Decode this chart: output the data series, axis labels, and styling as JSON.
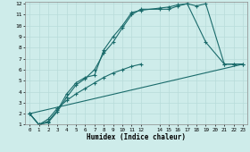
{
  "xlabel": "Humidex (Indice chaleur)",
  "bg_color": "#ceecea",
  "line_color": "#1a6b6b",
  "grid_color": "#b8dbd9",
  "xlim": [
    -0.5,
    23.5
  ],
  "ylim": [
    1,
    12.2
  ],
  "xtick_vals": [
    0,
    1,
    2,
    3,
    4,
    5,
    6,
    7,
    8,
    9,
    10,
    11,
    12,
    14,
    15,
    16,
    17,
    18,
    19,
    20,
    21,
    22,
    23
  ],
  "xtick_labels": [
    "0",
    "1",
    "2",
    "3",
    "4",
    "5",
    "6",
    "7",
    "8",
    "9",
    "10",
    "11",
    "12",
    "14",
    "15",
    "16",
    "17",
    "18",
    "19",
    "20",
    "21",
    "22",
    "23"
  ],
  "ytick_vals": [
    1,
    2,
    3,
    4,
    5,
    6,
    7,
    8,
    9,
    10,
    11,
    12
  ],
  "ytick_labels": [
    "1",
    "2",
    "3",
    "4",
    "5",
    "6",
    "7",
    "8",
    "9",
    "10",
    "11",
    "12"
  ],
  "line1_x": [
    0,
    1,
    2,
    3,
    4,
    5,
    6,
    7,
    8,
    9,
    10,
    11,
    12,
    14,
    15,
    16,
    17,
    18,
    19,
    21,
    22,
    23
  ],
  "line1_y": [
    2.0,
    1.0,
    1.2,
    2.2,
    3.5,
    4.6,
    5.2,
    6.0,
    7.5,
    8.5,
    9.8,
    11.0,
    11.5,
    11.5,
    11.5,
    11.8,
    12.0,
    11.8,
    12.0,
    6.5,
    6.5,
    6.5
  ],
  "line2_x": [
    0,
    1,
    2,
    3,
    4,
    5,
    6,
    7,
    8,
    9,
    10,
    11,
    12,
    14,
    15,
    16,
    17,
    19,
    21,
    22,
    23
  ],
  "line2_y": [
    2.0,
    1.0,
    1.3,
    2.3,
    3.8,
    4.8,
    5.3,
    5.5,
    7.8,
    9.0,
    10.0,
    11.2,
    11.4,
    11.6,
    11.7,
    11.9,
    12.0,
    8.5,
    6.5,
    6.5,
    6.5
  ],
  "line3_x": [
    0,
    1,
    2,
    3,
    4,
    5,
    6,
    7,
    8,
    9,
    10,
    11,
    12
  ],
  "line3_y": [
    2.0,
    1.0,
    1.5,
    2.5,
    3.2,
    3.8,
    4.3,
    4.8,
    5.3,
    5.7,
    6.0,
    6.3,
    6.5
  ],
  "line4_x": [
    0,
    23
  ],
  "line4_y": [
    2.0,
    6.5
  ]
}
